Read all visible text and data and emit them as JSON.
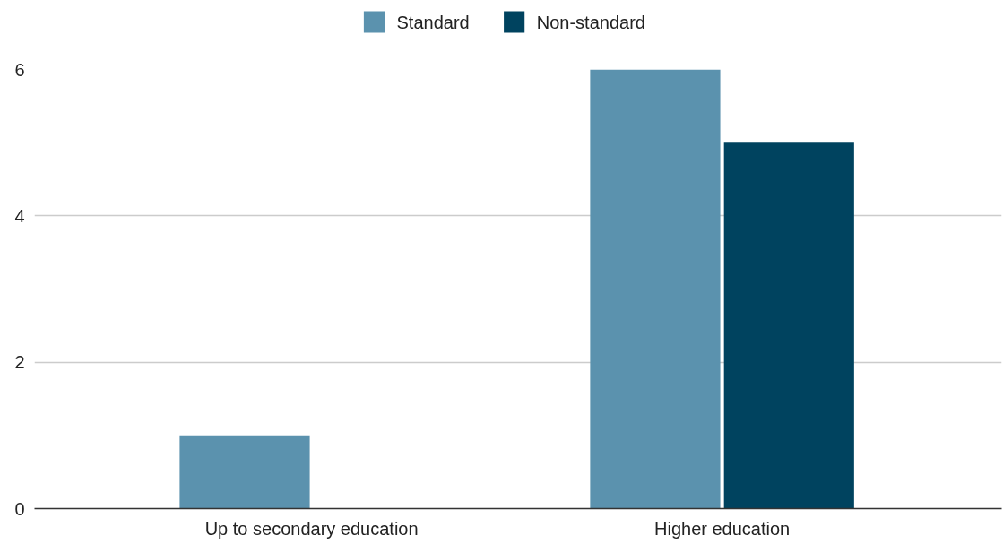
{
  "chart_data": {
    "type": "bar",
    "categories": [
      "Up to secondary education",
      "Higher education"
    ],
    "series": [
      {
        "name": "Standard",
        "color": "#5b92ae",
        "values": [
          1,
          6
        ]
      },
      {
        "name": "Non-standard",
        "color": "#00435f",
        "values": [
          0,
          5
        ]
      }
    ],
    "ylim": [
      0,
      6
    ],
    "yticks": [
      0,
      2,
      4,
      6
    ],
    "grid": "y",
    "legend": "top"
  }
}
